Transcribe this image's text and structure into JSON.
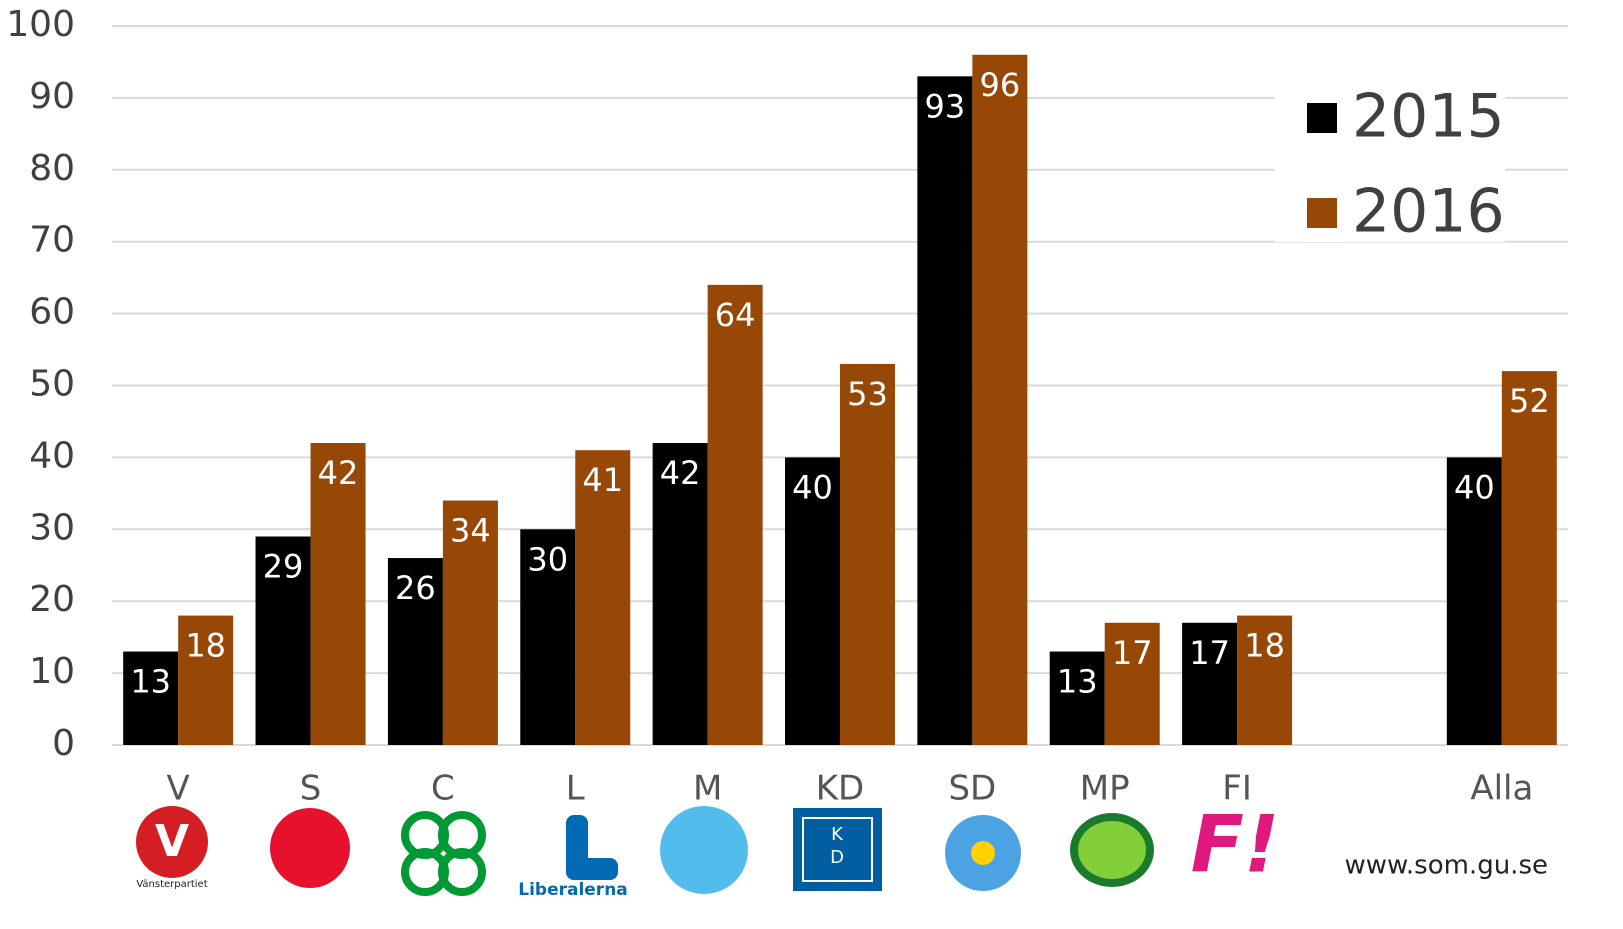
{
  "chart_data": {
    "type": "bar",
    "categories": [
      "V",
      "S",
      "C",
      "L",
      "M",
      "KD",
      "SD",
      "MP",
      "FI",
      null,
      "Alla"
    ],
    "series": [
      {
        "name": "2015",
        "color": "#000000",
        "values": [
          13,
          29,
          26,
          30,
          42,
          40,
          93,
          13,
          17,
          null,
          40
        ]
      },
      {
        "name": "2016",
        "color": "#974706",
        "values": [
          18,
          42,
          34,
          41,
          64,
          53,
          96,
          17,
          18,
          null,
          52
        ]
      }
    ],
    "ylim": [
      0,
      100
    ],
    "yticks": [
      0,
      10,
      20,
      30,
      40,
      50,
      60,
      70,
      80,
      90,
      100
    ],
    "grid": true,
    "legend": "top-right"
  },
  "logo_texts": [
    "Vänsterpartiet",
    "Liberalerna",
    "K",
    "D",
    "F!"
  ],
  "footer": "www.som.gu.se"
}
